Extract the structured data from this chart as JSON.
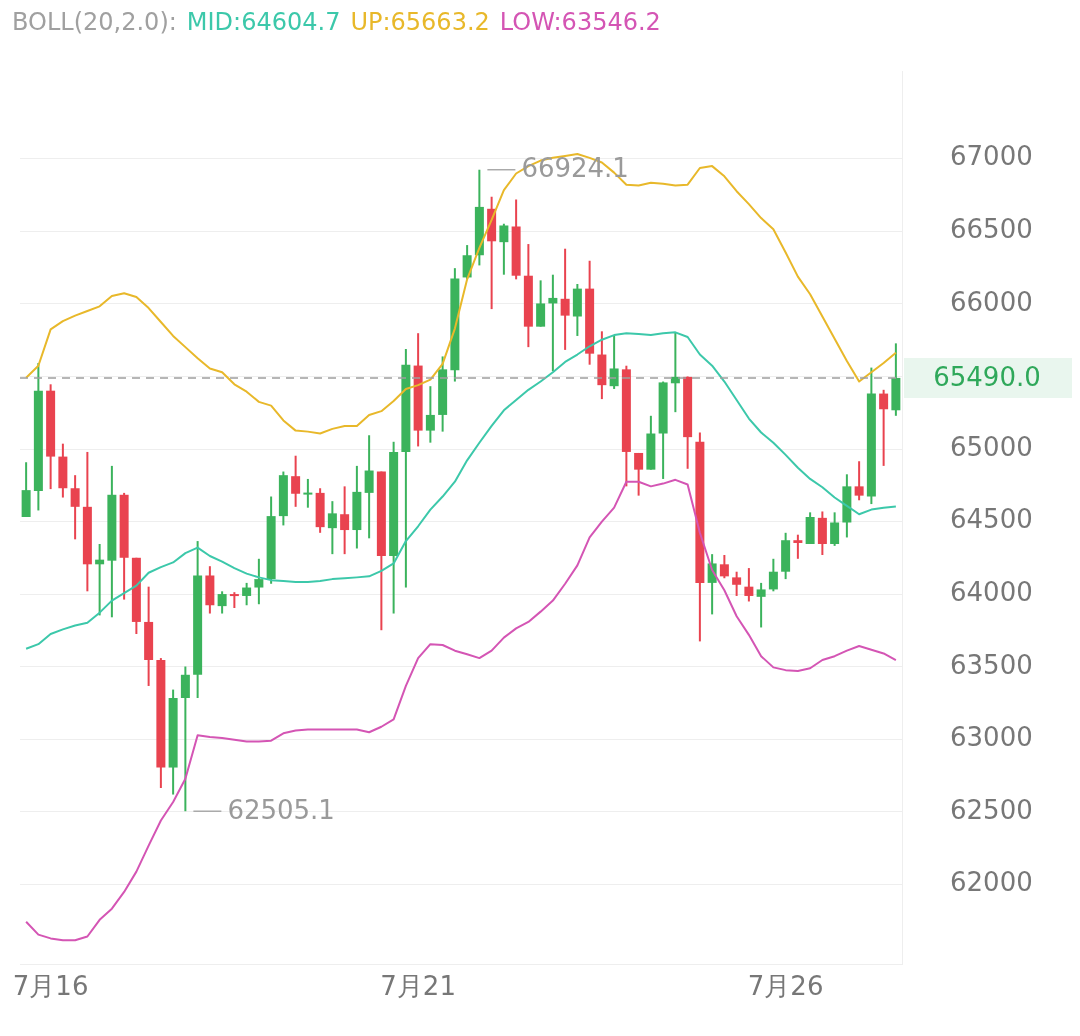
{
  "chart_data": {
    "type": "candlestick",
    "title": "BOLL(20,2.0):",
    "categories": [
      null,
      null,
      "7月16",
      null,
      null,
      null,
      null,
      null,
      null,
      null,
      null,
      null,
      null,
      null,
      null,
      null,
      null,
      null,
      null,
      null,
      null,
      null,
      null,
      null,
      null,
      null,
      null,
      null,
      null,
      null,
      null,
      null,
      "7月21",
      null,
      null,
      null,
      null,
      null,
      null,
      null,
      null,
      null,
      null,
      null,
      null,
      null,
      null,
      null,
      null,
      null,
      null,
      null,
      null,
      null,
      null,
      null,
      null,
      null,
      null,
      null,
      null,
      null,
      "7月26",
      null,
      null,
      null,
      null,
      null,
      null,
      null,
      null,
      null
    ],
    "ohlc": [
      [
        64532,
        64909,
        64532,
        64717
      ],
      [
        64711,
        65593,
        64577,
        65402
      ],
      [
        65402,
        65446,
        64724,
        64948
      ],
      [
        64948,
        65037,
        64666,
        64730
      ],
      [
        64730,
        64820,
        64378,
        64602
      ],
      [
        64602,
        64980,
        64020,
        64206
      ],
      [
        64206,
        64346,
        63854,
        64238
      ],
      [
        64231,
        64884,
        63841,
        64685
      ],
      [
        64685,
        64698,
        63963,
        64251
      ],
      [
        64251,
        64251,
        63726,
        63809
      ],
      [
        63809,
        64052,
        63368,
        63547
      ],
      [
        63547,
        63560,
        62665,
        62806
      ],
      [
        62806,
        63343,
        62620,
        63285
      ],
      [
        63285,
        63502,
        62505.1,
        63445
      ],
      [
        63445,
        64366,
        63285,
        64129
      ],
      [
        64129,
        64193,
        63867,
        63924
      ],
      [
        63918,
        64020,
        63867,
        64001
      ],
      [
        64001,
        64014,
        63905,
        63988
      ],
      [
        63988,
        64078,
        63924,
        64046
      ],
      [
        64046,
        64244,
        63931,
        64104
      ],
      [
        64104,
        64673,
        64072,
        64538
      ],
      [
        64538,
        64845,
        64474,
        64820
      ],
      [
        64813,
        64954,
        64602,
        64692
      ],
      [
        64695,
        64794,
        64596,
        64700
      ],
      [
        64698,
        64730,
        64423,
        64462
      ],
      [
        64455,
        64641,
        64276,
        64557
      ],
      [
        64551,
        64743,
        64276,
        64442
      ],
      [
        64442,
        64884,
        64315,
        64705
      ],
      [
        64698,
        65095,
        64385,
        64852
      ],
      [
        64845,
        64845,
        63752,
        64263
      ],
      [
        64263,
        65050,
        63867,
        64980
      ],
      [
        64980,
        65689,
        64046,
        65581
      ],
      [
        65575,
        65798,
        65018,
        65127
      ],
      [
        65127,
        65433,
        65044,
        65235
      ],
      [
        65235,
        65638,
        65120,
        65549
      ],
      [
        65542,
        66246,
        65465,
        66175
      ],
      [
        66182,
        66405,
        66170,
        66335
      ],
      [
        66335,
        66924.1,
        66265,
        66668
      ],
      [
        66655,
        66738,
        65964,
        66431
      ],
      [
        66425,
        66552,
        66201,
        66540
      ],
      [
        66533,
        66719,
        66169,
        66194
      ],
      [
        66194,
        66412,
        65702,
        65843
      ],
      [
        65843,
        66162,
        65843,
        66003
      ],
      [
        66003,
        66201,
        65536,
        66041
      ],
      [
        66035,
        66380,
        65683,
        65919
      ],
      [
        65913,
        66137,
        65779,
        66105
      ],
      [
        66105,
        66297,
        65581,
        65657
      ],
      [
        65651,
        65811,
        65344,
        65440
      ],
      [
        65433,
        65785,
        65414,
        65555
      ],
      [
        65549,
        65574,
        64743,
        64980
      ],
      [
        64973,
        64973,
        64679,
        64858
      ],
      [
        64858,
        65229,
        64858,
        65107
      ],
      [
        65107,
        65465,
        64794,
        65459
      ],
      [
        65453,
        65804,
        65254,
        65497
      ],
      [
        65497,
        65500,
        64864,
        65082
      ],
      [
        65050,
        65114,
        63675,
        64078
      ],
      [
        64078,
        64276,
        63861,
        64212
      ],
      [
        64206,
        64270,
        64110,
        64123
      ],
      [
        64116,
        64155,
        63988,
        64065
      ],
      [
        64052,
        64180,
        63950,
        63988
      ],
      [
        63982,
        64078,
        63771,
        64033
      ],
      [
        64033,
        64244,
        64020,
        64155
      ],
      [
        64155,
        64423,
        64104,
        64372
      ],
      [
        64372,
        64410,
        64244,
        64353
      ],
      [
        64346,
        64564,
        64346,
        64532
      ],
      [
        64526,
        64570,
        64270,
        64346
      ],
      [
        64346,
        64564,
        64333,
        64494
      ],
      [
        64494,
        64826,
        64391,
        64743
      ],
      [
        64743,
        64916,
        64647,
        64679
      ],
      [
        64673,
        65561,
        64621,
        65382
      ],
      [
        65382,
        65408,
        64884,
        65274
      ],
      [
        65267,
        65728,
        65229,
        65490
      ]
    ],
    "colors": [
      "#3bb35c",
      "#3bb35c",
      "#e9434f",
      "#e9434f",
      "#e9434f",
      "#e9434f",
      "#3bb35c",
      "#3bb35c",
      "#e9434f",
      "#e9434f",
      "#e9434f",
      "#e9434f",
      "#3bb35c",
      "#3bb35c",
      "#3bb35c",
      "#e9434f",
      "#3bb35c",
      "#e9434f",
      "#3bb35c",
      "#3bb35c",
      "#3bb35c",
      "#3bb35c",
      "#e9434f",
      "#3bb35c",
      "#e9434f",
      "#3bb35c",
      "#e9434f",
      "#3bb35c",
      "#3bb35c",
      "#e9434f",
      "#3bb35c",
      "#3bb35c",
      "#e9434f",
      "#3bb35c",
      "#3bb35c",
      "#3bb35c",
      "#3bb35c",
      "#3bb35c",
      "#e9434f",
      "#3bb35c",
      "#e9434f",
      "#e9434f",
      "#3bb35c",
      "#3bb35c",
      "#e9434f",
      "#3bb35c",
      "#e9434f",
      "#e9434f",
      "#3bb35c",
      "#e9434f",
      "#e9434f",
      "#3bb35c",
      "#3bb35c",
      "#3bb35c",
      "#e9434f",
      "#e9434f",
      "#3bb35c",
      "#e9434f",
      "#e9434f",
      "#e9434f",
      "#3bb35c",
      "#3bb35c",
      "#3bb35c",
      "#e9434f",
      "#3bb35c",
      "#e9434f",
      "#3bb35c",
      "#3bb35c",
      "#e9434f",
      "#3bb35c",
      "#e9434f",
      "#3bb35c"
    ],
    "series": [
      {
        "type": "line",
        "name": "MID:64604.7",
        "color": "#3cc8aa",
        "values": [
          63624,
          63656,
          63726,
          63758,
          63784,
          63803,
          63873,
          63956,
          64008,
          64059,
          64148,
          64187,
          64219,
          64283,
          64321,
          64263,
          64225,
          64180,
          64142,
          64116,
          64097,
          64091,
          64084,
          64084,
          64091,
          64104,
          64110,
          64116,
          64123,
          64161,
          64212,
          64366,
          64468,
          64583,
          64673,
          64775,
          64922,
          65043,
          65159,
          65267,
          65338,
          65408,
          65465,
          65529,
          65600,
          65651,
          65708,
          65753,
          65785,
          65798,
          65792,
          65785,
          65798,
          65804,
          65772,
          65651,
          65574,
          65465,
          65338,
          65210,
          65114,
          65043,
          64960,
          64871,
          64794,
          64737,
          64666,
          64609,
          64551,
          64583,
          64596,
          64604.7
        ]
      },
      {
        "type": "line",
        "name": "UP:65663.2",
        "color": "#e8b82a",
        "values": [
          65491,
          65574,
          65824,
          65881,
          65919,
          65951,
          65983,
          66054,
          66073,
          66047,
          65971,
          65875,
          65779,
          65702,
          65625,
          65555,
          65529,
          65446,
          65395,
          65325,
          65299,
          65197,
          65127,
          65120,
          65107,
          65139,
          65159,
          65159,
          65235,
          65261,
          65331,
          65414,
          65440,
          65478,
          65587,
          65830,
          66169,
          66386,
          66578,
          66783,
          66898,
          66949,
          66987,
          67006,
          67019,
          67032,
          67006,
          66974,
          66904,
          66821,
          66815,
          66834,
          66827,
          66815,
          66821,
          66936,
          66949,
          66879,
          66776,
          66687,
          66591,
          66514,
          66354,
          66188,
          66066,
          65913,
          65760,
          65606,
          65465,
          65529,
          65593,
          65663.2
        ]
      },
      {
        "type": "line",
        "name": "LOW:63546.2",
        "color": "#d455b4",
        "values": [
          61744,
          61655,
          61629,
          61616,
          61616,
          61642,
          61757,
          61834,
          61949,
          62089,
          62268,
          62441,
          62569,
          62729,
          63029,
          63017,
          63010,
          62997,
          62985,
          62985,
          62991,
          63042,
          63061,
          63068,
          63068,
          63068,
          63068,
          63068,
          63049,
          63087,
          63138,
          63368,
          63560,
          63656,
          63650,
          63611,
          63586,
          63560,
          63611,
          63701,
          63765,
          63809,
          63880,
          63956,
          64072,
          64199,
          64391,
          64500,
          64596,
          64775,
          64775,
          64743,
          64762,
          64788,
          64756,
          64423,
          64167,
          64027,
          63848,
          63720,
          63573,
          63496,
          63477,
          63471,
          63490,
          63547,
          63573,
          63611,
          63643,
          63618,
          63592,
          63546.2
        ]
      }
    ],
    "ylim": [
      61450,
      67600
    ],
    "yticks": [
      62000,
      62500,
      63000,
      63500,
      64000,
      64500,
      65000,
      {
        "value": 65500,
        "label": null
      },
      66000,
      66500,
      67000
    ],
    "grid": "y",
    "legend": "top",
    "ref_lines": [
      {
        "axis": "y",
        "value": 65490,
        "label": "65490.0",
        "color": "#9e9e9e",
        "line_style": "dashed"
      }
    ],
    "annotations": [
      "66924.1",
      "62505.1"
    ]
  }
}
